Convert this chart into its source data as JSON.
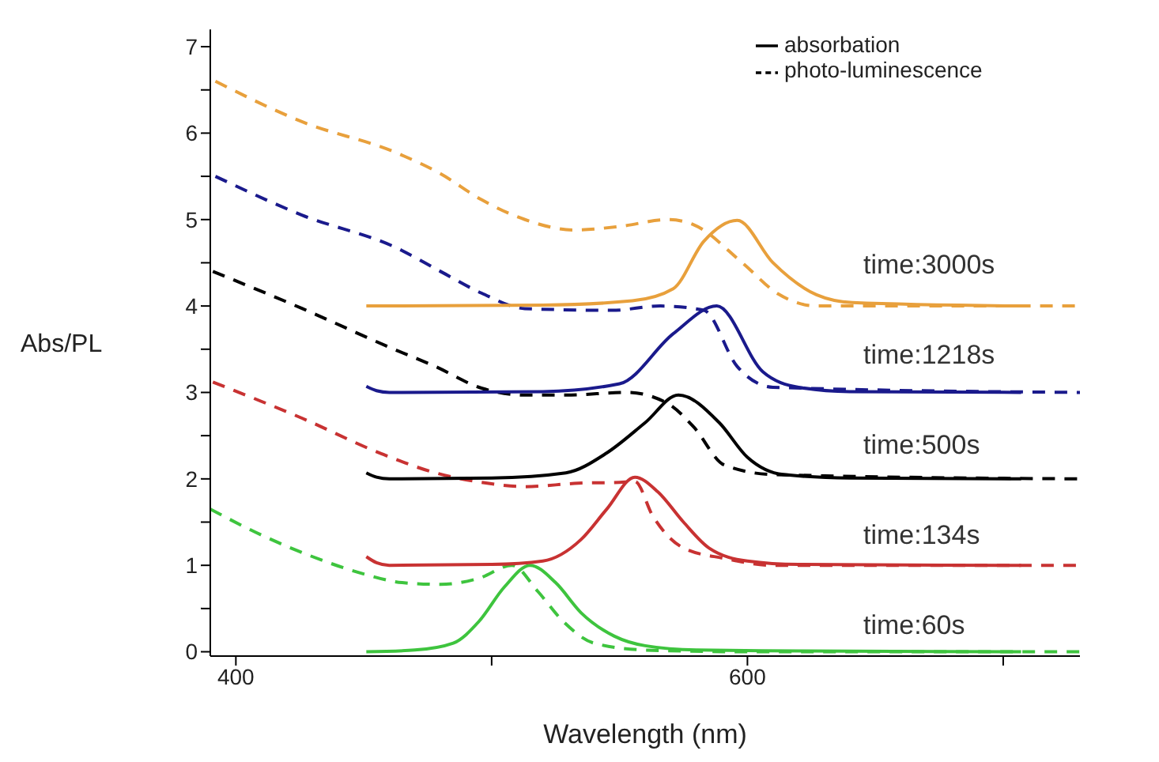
{
  "chart_data": {
    "type": "line",
    "xlabel": "Wavelength (nm)",
    "ylabel": "Abs/PL",
    "xlim": [
      390,
      730
    ],
    "ylim": [
      -0.05,
      7.2
    ],
    "xticks": [
      400,
      {
        "value": 500,
        "label": null
      },
      600,
      {
        "value": 700,
        "label": null
      }
    ],
    "yticks": [
      0,
      {
        "value": 0.5,
        "label": null
      },
      1,
      {
        "value": 1.5,
        "label": null
      },
      2,
      {
        "value": 2.5,
        "label": null
      },
      3,
      {
        "value": 3.5,
        "label": null
      },
      4,
      {
        "value": 4.5,
        "label": null
      },
      5,
      {
        "value": 5.5,
        "label": null
      },
      6,
      {
        "value": 6.5,
        "label": null
      },
      7
    ],
    "grid": false,
    "legend": "top right",
    "marker": "none",
    "series": [
      {
        "color": "#3ec43e",
        "line_style": "solid",
        "x": [
          451,
          470,
          485,
          495,
          505,
          515,
          525,
          535,
          548,
          560,
          580,
          620,
          707
        ],
        "values": [
          0,
          0.02,
          0.1,
          0.35,
          0.75,
          1.0,
          0.8,
          0.45,
          0.18,
          0.07,
          0.02,
          0.01,
          0
        ]
      },
      {
        "color": "#3ec43e",
        "line_style": "dashed",
        "x": [
          390,
          410,
          430,
          450,
          465,
          480,
          495,
          508,
          518,
          528,
          540,
          560,
          600,
          730
        ],
        "values": [
          1.65,
          1.35,
          1.1,
          0.9,
          0.8,
          0.78,
          0.85,
          1.0,
          0.7,
          0.35,
          0.1,
          0.02,
          0,
          0
        ]
      },
      {
        "color": "#c83232",
        "line_style": "solid",
        "x": [
          451,
          455,
          460,
          500,
          520,
          535,
          545,
          556,
          565,
          575,
          585,
          600,
          620,
          707
        ],
        "values": [
          1.1,
          1.03,
          1.0,
          1.01,
          1.05,
          1.3,
          1.65,
          2.02,
          1.85,
          1.5,
          1.2,
          1.05,
          1.01,
          1.0
        ]
      },
      {
        "color": "#c83232",
        "line_style": "dashed",
        "x": [
          391,
          426,
          457,
          478,
          496,
          513,
          534,
          550,
          556,
          563,
          575,
          591,
          610,
          730
        ],
        "values": [
          3.12,
          2.7,
          2.29,
          2.07,
          1.96,
          1.91,
          1.95,
          1.96,
          1.97,
          1.57,
          1.2,
          1.08,
          1.0,
          1.0
        ]
      },
      {
        "name": "absorbation",
        "color": "#000000",
        "line_style": "solid",
        "x": [
          451,
          455,
          460,
          500,
          529,
          545,
          560,
          573,
          589,
          600,
          614,
          640,
          707
        ],
        "values": [
          2.07,
          2.02,
          2.0,
          2.01,
          2.07,
          2.3,
          2.65,
          2.97,
          2.65,
          2.25,
          2.05,
          2.01,
          2.0
        ]
      },
      {
        "name": "photo-luminescence",
        "color": "#000000",
        "line_style": "dashed",
        "x": [
          391,
          426,
          461,
          478,
          496,
          513,
          529,
          553,
          569,
          579,
          591,
          610,
          730
        ],
        "values": [
          4.4,
          3.97,
          3.51,
          3.3,
          3.05,
          2.97,
          2.97,
          3.0,
          2.87,
          2.6,
          2.16,
          2.05,
          2.0
        ]
      },
      {
        "color": "#1a1a8c",
        "line_style": "solid",
        "x": [
          451,
          455,
          460,
          520,
          550,
          571,
          588,
          606,
          620,
          640,
          707
        ],
        "values": [
          3.07,
          3.02,
          3.0,
          3.01,
          3.1,
          3.68,
          4.0,
          3.24,
          3.06,
          3.01,
          3.0
        ]
      },
      {
        "color": "#1a1a8c",
        "line_style": "dashed",
        "x": [
          392,
          426,
          463,
          480,
          496,
          513,
          547,
          566,
          583,
          596,
          610,
          730
        ],
        "values": [
          5.5,
          5.05,
          4.67,
          4.4,
          4.15,
          3.97,
          3.95,
          4.0,
          3.95,
          3.3,
          3.06,
          3.0
        ]
      },
      {
        "color": "#e8a03c",
        "line_style": "solid",
        "x": [
          451,
          520,
          555,
          571,
          583,
          596,
          610,
          627,
          641,
          707
        ],
        "values": [
          4.0,
          4.01,
          4.06,
          4.2,
          4.75,
          4.99,
          4.5,
          4.13,
          4.04,
          4.0
        ]
      },
      {
        "color": "#e8a03c",
        "line_style": "dashed",
        "x": [
          392,
          426,
          463,
          480,
          496,
          513,
          532,
          550,
          569,
          579,
          598,
          612,
          627,
          730
        ],
        "values": [
          6.6,
          6.13,
          5.77,
          5.53,
          5.23,
          5.0,
          4.88,
          4.92,
          5.0,
          4.94,
          4.5,
          4.14,
          4.0,
          4.0
        ]
      }
    ],
    "annotations": [
      "time:3000s",
      "time:1218s",
      "time:500s",
      "time:134s",
      "time:60s"
    ]
  }
}
